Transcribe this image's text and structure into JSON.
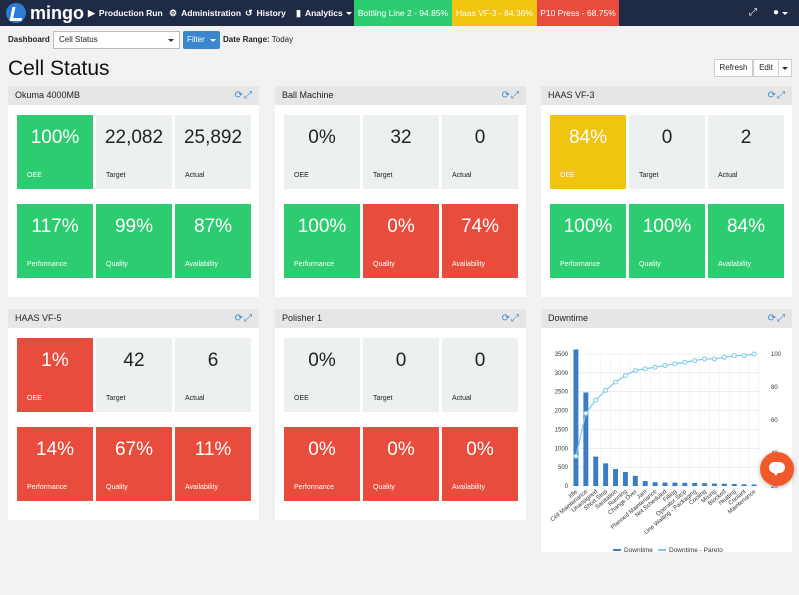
{
  "nav": {
    "brand": "mingo",
    "items": [
      {
        "label": "Production Run",
        "icon": "play-icon"
      },
      {
        "label": "Administration",
        "icon": "gear-icon"
      },
      {
        "label": "History",
        "icon": "history-icon"
      },
      {
        "label": "Analytics",
        "icon": "bar-chart-icon"
      }
    ],
    "badges": [
      {
        "label": "Bottling Line 2 - 94.85%",
        "color": "#2ecc71"
      },
      {
        "label": "Haas VF-3 - 84.36%",
        "color": "#f1c40f"
      },
      {
        "label": "P10 Press - 68.75%",
        "color": "#e74c3c"
      }
    ]
  },
  "toolbar": {
    "dashboard_label": "Dashboard",
    "dashboard_value": "Cell Status",
    "filter_label": "Filter",
    "date_range_label": "Date Range:",
    "date_range_value": "Today"
  },
  "page": {
    "title": "Cell Status",
    "refresh_label": "Refresh",
    "edit_label": "Edit"
  },
  "labels": {
    "oee": "OEE",
    "target": "Target",
    "actual": "Actual",
    "performance": "Performance",
    "quality": "Quality",
    "availability": "Availability"
  },
  "cells": [
    {
      "name": "Okuma 4000MB",
      "oee": "100%",
      "target": "22,082",
      "actual": "25,892",
      "performance": "117%",
      "quality": "99%",
      "availability": "87%",
      "colors": {
        "oee": "green",
        "performance": "green",
        "quality": "green",
        "availability": "green"
      }
    },
    {
      "name": "Ball Machine",
      "oee": "0%",
      "target": "32",
      "actual": "0",
      "performance": "100%",
      "quality": "0%",
      "availability": "74%",
      "colors": {
        "oee": "grey",
        "performance": "green",
        "quality": "red",
        "availability": "red"
      }
    },
    {
      "name": "HAAS VF-3",
      "oee": "84%",
      "target": "0",
      "actual": "2",
      "performance": "100%",
      "quality": "100%",
      "availability": "84%",
      "colors": {
        "oee": "yellow",
        "performance": "green",
        "quality": "green",
        "availability": "green"
      }
    },
    {
      "name": "HAAS VF-5",
      "oee": "1%",
      "target": "42",
      "actual": "6",
      "performance": "14%",
      "quality": "67%",
      "availability": "11%",
      "colors": {
        "oee": "red",
        "performance": "red",
        "quality": "red",
        "availability": "red"
      }
    },
    {
      "name": "Polisher 1",
      "oee": "0%",
      "target": "0",
      "actual": "0",
      "performance": "0%",
      "quality": "0%",
      "availability": "0%",
      "colors": {
        "oee": "grey",
        "performance": "red",
        "quality": "red",
        "availability": "red"
      }
    }
  ],
  "downtime": {
    "title": "Downtime",
    "chart_data": {
      "type": "bar",
      "categories": [
        "Idle",
        "Cell Maintenance",
        "Unassigned",
        "Short Stop",
        "Sanitation",
        "Running",
        "Change Over",
        "Jam",
        "Planned Maintenance",
        "Not Scheduled",
        "Filling",
        "Operator Stop",
        "Line Waiting - Packaging",
        "Cooling",
        "Mixing",
        "Blocked",
        "Heating",
        "Coolant",
        "Maintenance"
      ],
      "series": [
        {
          "name": "Downtime",
          "type": "bar",
          "axis": "left",
          "color": "#3b7dc4",
          "values": [
            3620,
            2480,
            780,
            600,
            450,
            370,
            270,
            130,
            100,
            90,
            90,
            85,
            80,
            75,
            65,
            60,
            55,
            45,
            40
          ]
        },
        {
          "name": "Downtime - Pareto",
          "type": "line",
          "axis": "right",
          "color": "#7ecbe8",
          "values": [
            38,
            64,
            72,
            78,
            83,
            87,
            90,
            91,
            92,
            93,
            94,
            95,
            96,
            97,
            97,
            98,
            99,
            99,
            100
          ]
        }
      ],
      "y_left_ticks": [
        "0",
        "500",
        "1000",
        "1500",
        "2000",
        "2500",
        "3000",
        "3500"
      ],
      "y_right_ticks": [
        "20",
        "40",
        "60",
        "80",
        "100"
      ],
      "ylim_left": [
        0,
        3500
      ],
      "ylim_right": [
        20,
        100
      ],
      "grid": true,
      "legend": "bottom"
    }
  }
}
